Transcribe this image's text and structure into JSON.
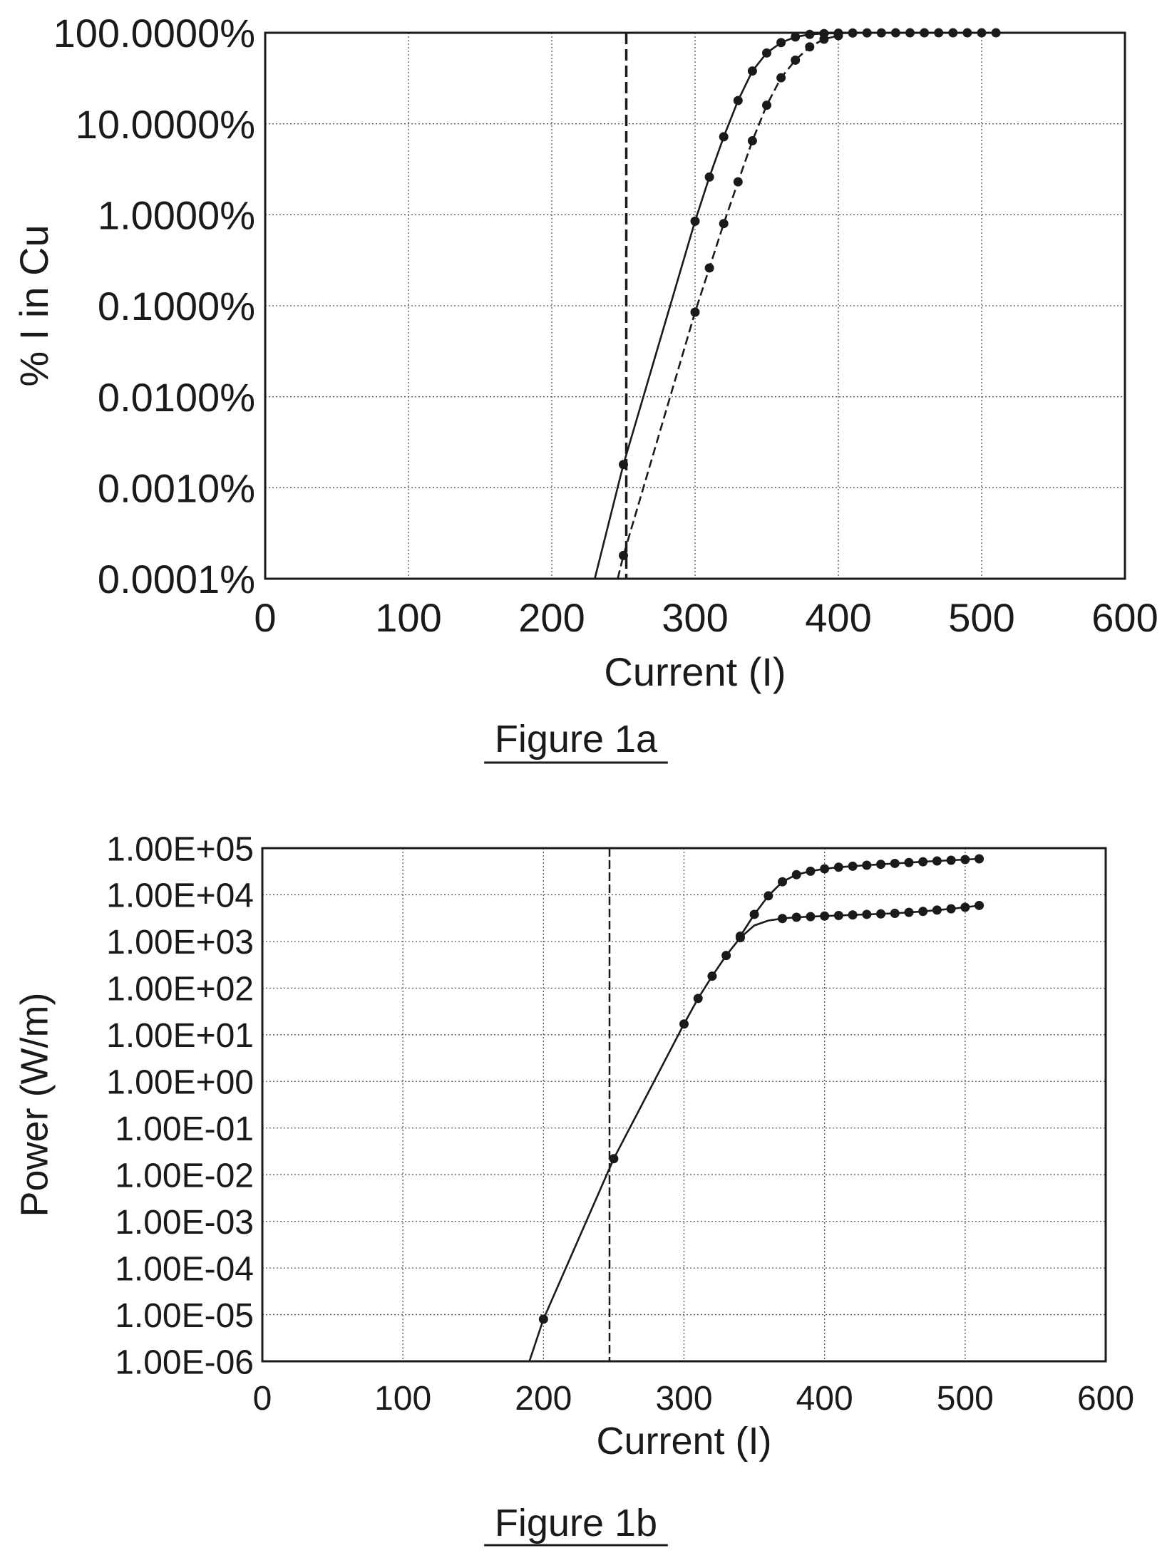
{
  "chart_data": [
    {
      "type": "line",
      "caption": "Figure 1a",
      "xlabel": "Current (I)",
      "ylabel": "% I in Cu",
      "xlim": [
        0,
        600
      ],
      "ylim": [
        0.0001,
        100
      ],
      "yscale": "log",
      "x_ticks": [
        0,
        100,
        200,
        300,
        400,
        500,
        600
      ],
      "y_ticks": [
        {
          "value": 0.0001,
          "label": "0.0001%"
        },
        {
          "value": 0.001,
          "label": "0.0010%"
        },
        {
          "value": 0.01,
          "label": "0.0100%"
        },
        {
          "value": 0.1,
          "label": "0.1000%"
        },
        {
          "value": 1,
          "label": "1.0000%"
        },
        {
          "value": 10,
          "label": "10.0000%"
        },
        {
          "value": 100,
          "label": "100.0000%"
        }
      ],
      "grid": true,
      "vline": {
        "x": 252,
        "style": "dashed"
      },
      "series": [
        {
          "style": "solid",
          "x": [
            230,
            250,
            300,
            310,
            320,
            330,
            340,
            350,
            360,
            370,
            380,
            390,
            400,
            410,
            420,
            430,
            440,
            450,
            460,
            470,
            480,
            490,
            500,
            510
          ],
          "y": [
            0.0001,
            0.0018,
            0.85,
            2.6,
            7.2,
            18,
            38,
            60,
            78,
            90,
            96,
            98,
            99,
            99.5,
            99.7,
            99.8,
            99.9,
            99.9,
            99.9,
            99.9,
            99.9,
            99.9,
            99.9,
            99.9
          ],
          "markers": [
            false,
            true,
            true,
            true,
            true,
            true,
            true,
            true,
            true,
            true,
            true,
            true,
            true,
            true,
            true,
            true,
            true,
            true,
            true,
            true,
            true,
            true,
            true,
            true
          ]
        },
        {
          "style": "dashed",
          "x": [
            246,
            250,
            300,
            310,
            320,
            330,
            340,
            350,
            360,
            370,
            380,
            390,
            400
          ],
          "y": [
            0.0001,
            0.00018,
            0.085,
            0.26,
            0.8,
            2.3,
            6.5,
            16,
            32,
            50,
            70,
            85,
            93
          ],
          "markers": [
            false,
            true,
            true,
            true,
            true,
            true,
            true,
            true,
            true,
            true,
            true,
            true,
            true
          ]
        }
      ]
    },
    {
      "type": "line",
      "caption": "Figure 1b",
      "xlabel": "Current (I)",
      "ylabel": "Power (W/m)",
      "xlim": [
        0,
        600
      ],
      "ylim": [
        1e-06,
        100000.0
      ],
      "yscale": "log",
      "x_ticks": [
        0,
        100,
        200,
        300,
        400,
        500,
        600
      ],
      "y_ticks": [
        {
          "value": 1e-06,
          "label": "1.00E-06"
        },
        {
          "value": 1e-05,
          "label": "1.00E-05"
        },
        {
          "value": 0.0001,
          "label": "1.00E-04"
        },
        {
          "value": 0.001,
          "label": "1.00E-03"
        },
        {
          "value": 0.01,
          "label": "1.00E-02"
        },
        {
          "value": 0.1,
          "label": "1.00E-01"
        },
        {
          "value": 1.0,
          "label": "1.00E+00"
        },
        {
          "value": 10.0,
          "label": "1.00E+01"
        },
        {
          "value": 100.0,
          "label": "1.00E+02"
        },
        {
          "value": 1000.0,
          "label": "1.00E+03"
        },
        {
          "value": 10000.0,
          "label": "1.00E+04"
        },
        {
          "value": 100000.0,
          "label": "1.00E+05"
        }
      ],
      "grid": true,
      "vline": {
        "x": 247,
        "style": "dashed"
      },
      "series": [
        {
          "style": "solid",
          "x": [
            190,
            200,
            250,
            300,
            310,
            320,
            330,
            340,
            350,
            360,
            370,
            380,
            390,
            400,
            410,
            420,
            430,
            440,
            450,
            460,
            470,
            480,
            490,
            500,
            510
          ],
          "y": [
            1e-06,
            8e-06,
            0.022,
            17,
            60,
            180,
            500,
            1200,
            2200,
            2800,
            3100,
            3300,
            3400,
            3500,
            3600,
            3700,
            3800,
            3900,
            4000,
            4200,
            4400,
            4700,
            5000,
            5400,
            5900
          ],
          "markers": [
            false,
            true,
            true,
            true,
            true,
            true,
            true,
            true,
            false,
            false,
            true,
            true,
            true,
            true,
            true,
            true,
            true,
            true,
            true,
            true,
            true,
            true,
            true,
            true,
            true
          ]
        },
        {
          "style": "solid",
          "x": [
            340,
            350,
            360,
            370,
            380,
            390,
            400,
            410,
            420,
            430,
            440,
            450,
            460,
            470,
            480,
            490,
            500,
            510
          ],
          "y": [
            1300,
            3800,
            9500,
            19000,
            27000,
            32000,
            36000,
            39000,
            41000,
            43000,
            45000,
            47000,
            49000,
            51000,
            53000,
            55000,
            57000,
            59000
          ],
          "markers": [
            true,
            true,
            true,
            true,
            true,
            true,
            true,
            true,
            true,
            true,
            true,
            true,
            true,
            true,
            true,
            true,
            true,
            true
          ]
        }
      ]
    }
  ]
}
